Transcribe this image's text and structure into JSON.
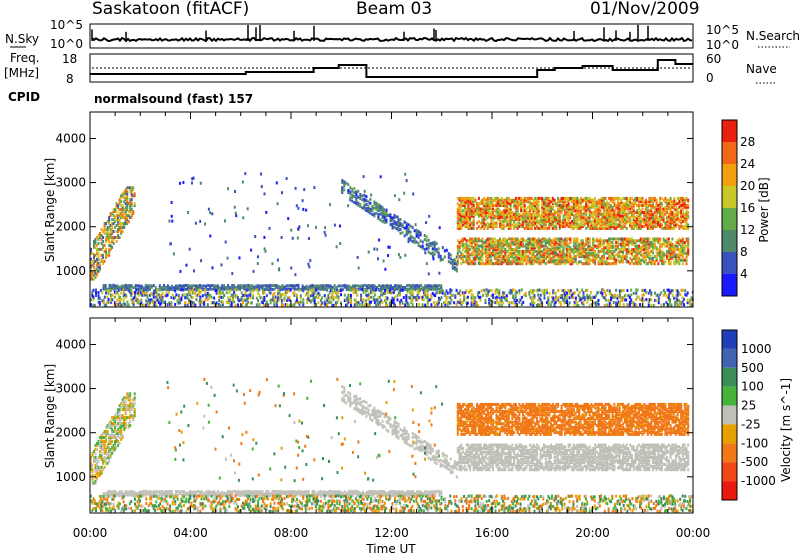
{
  "header": {
    "station": "Saskatoon (fitACF)",
    "beam": "Beam 03",
    "date": "01/Nov/2009"
  },
  "strips": {
    "nsky_label": "N.Sky",
    "nsky_ticks": [
      "10^5",
      "10^0"
    ],
    "nsearch_label": "N.Search",
    "freq_label_1": "Freq.",
    "freq_label_2": "[MHz]",
    "freq_ticks": [
      "18",
      "8"
    ],
    "nave_ticks": [
      "60",
      "0"
    ],
    "nave_label": "Nave",
    "cpid_label": "CPID",
    "cpid_value": "normalsound (fast) 157"
  },
  "chart_data": [
    {
      "type": "heatmap",
      "title": "",
      "xlabel": "Time UT",
      "ylabel": "Slant Range [km]",
      "x_ticks": [
        "00:00",
        "04:00",
        "08:00",
        "12:00",
        "16:00",
        "20:00",
        "00:00"
      ],
      "x_range_hours": [
        0,
        24
      ],
      "y_ticks": [
        1000,
        2000,
        3000,
        4000
      ],
      "ylim": [
        180,
        4600
      ],
      "colorbar": {
        "label": "Power [dB]",
        "ticks": [
          "4",
          "8",
          "12",
          "16",
          "20",
          "24",
          "28"
        ],
        "range": [
          0,
          32
        ],
        "colors": [
          "#1a1aff",
          "#3a52c0",
          "#4e8a6a",
          "#62aa4a",
          "#c8c828",
          "#f0a010",
          "#f06818",
          "#e82010"
        ]
      },
      "features": [
        {
          "desc": "near-range ground scatter band",
          "time_hours": [
            0.5,
            14
          ],
          "range_km": [
            560,
            640
          ],
          "power_db": 8
        },
        {
          "desc": "early echo arc",
          "time_hours": [
            0,
            1.7
          ],
          "range_km": [
            900,
            2800
          ],
          "power_db": 20
        },
        {
          "desc": "upper echo band",
          "time_hours": [
            14.6,
            23.8
          ],
          "range_km": [
            2050,
            2450
          ],
          "power_db": 24
        },
        {
          "desc": "lower echo band",
          "time_hours": [
            14.6,
            23.8
          ],
          "range_km": [
            1300,
            1700
          ],
          "power_db": 20
        }
      ]
    },
    {
      "type": "heatmap",
      "title": "",
      "xlabel": "Time UT",
      "ylabel": "Slant Range [km]",
      "x_ticks": [
        "00:00",
        "04:00",
        "08:00",
        "12:00",
        "16:00",
        "20:00",
        "00:00"
      ],
      "x_range_hours": [
        0,
        24
      ],
      "y_ticks": [
        1000,
        2000,
        3000,
        4000
      ],
      "ylim": [
        180,
        4600
      ],
      "colorbar": {
        "label": "Velocity [m s^-1]",
        "ticks": [
          "1000",
          "500",
          "100",
          "25",
          "-25",
          "-100",
          "-500",
          "-1000"
        ],
        "colors": [
          "#1f3fb8",
          "#3f64b0",
          "#3c8c5a",
          "#46b43a",
          "#c0c0b8",
          "#e8a000",
          "#f07818",
          "#f04818",
          "#e81a10"
        ]
      },
      "features": [
        {
          "desc": "ground scatter (near-zero velocity)",
          "time_hours": [
            0.5,
            14
          ],
          "range_km": [
            560,
            640
          ],
          "velocity": 0
        },
        {
          "desc": "early echo arc",
          "time_hours": [
            0,
            1.7
          ],
          "range_km": [
            900,
            2800
          ],
          "velocity": 0
        },
        {
          "desc": "upper echo band",
          "time_hours": [
            14.6,
            23.8
          ],
          "range_km": [
            2050,
            2650
          ],
          "velocity": -150
        },
        {
          "desc": "lower ground scatter band",
          "time_hours": [
            14.6,
            23.8
          ],
          "range_km": [
            1300,
            1700
          ],
          "velocity": 0
        }
      ]
    }
  ]
}
